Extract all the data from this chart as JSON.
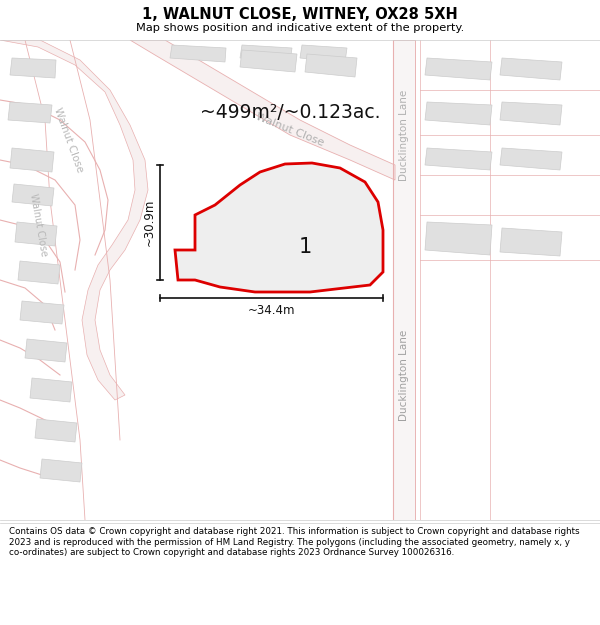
{
  "title": "1, WALNUT CLOSE, WITNEY, OX28 5XH",
  "subtitle": "Map shows position and indicative extent of the property.",
  "area_label": "~499m²/~0.123ac.",
  "plot_number": "1",
  "width_label": "~34.4m",
  "height_label": "~30.9m",
  "footer": "Contains OS data © Crown copyright and database right 2021. This information is subject to Crown copyright and database rights 2023 and is reproduced with the permission of HM Land Registry. The polygons (including the associated geometry, namely x, y co-ordinates) are subject to Crown copyright and database rights 2023 Ordnance Survey 100026316.",
  "map_bg": "#ffffff",
  "road_fill": "#f7f0f0",
  "road_edge": "#e8b0b0",
  "road_center": "#e8b8b8",
  "building_fill": "#e0e0e0",
  "building_edge": "#cccccc",
  "plot_fill": "#eeeeee",
  "plot_edge": "#dd0000",
  "label_road_color": "#b0b0b0",
  "label_road2_color": "#a0a0a0",
  "dim_color": "#111111",
  "area_color": "#111111",
  "title_color": "#000000",
  "footer_color": "#000000"
}
